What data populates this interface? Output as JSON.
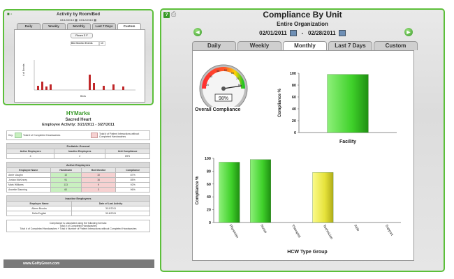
{
  "small_panel": {
    "title": "Activity by Room/Bed",
    "date_from": "03/12/2010",
    "date_to": "03/12/2010",
    "tabs": [
      "Daily",
      "Weekly",
      "Monthly",
      "Last 7 Days",
      "Custom"
    ],
    "active_tab": "Custom",
    "room_button": "Room 3 F",
    "bed_monitor_label": "Bed Monitor Events",
    "bed_monitor_value": "10",
    "y_label": "# of Events",
    "x_label": "Beds"
  },
  "report": {
    "brand_hy": "HY",
    "brand_marks": "Marks",
    "facility": "Sacred Heart",
    "activity_title": "Employee Activity: 3/21/2011 - 3/27/2011",
    "legend_key": "Key:",
    "legend_green": "Total # of Completed Handwashes",
    "legend_pink": "Total # of Patient Interactions without Completed Handwashes",
    "unit_name": "Pediatric General",
    "unit_headers": [
      "Active Employees",
      "Inactive Employees",
      "Unit Compliance"
    ],
    "unit_values": [
      "4",
      "2",
      "89%"
    ],
    "active_title": "Active Employees",
    "active_headers": [
      "Employee Name",
      "Handwash",
      "Bed Monitor",
      "Compliance"
    ],
    "active_rows": [
      [
        "Aerie Vaughn",
        "10",
        "10",
        "87%"
      ],
      [
        "Jordan McKinney",
        "91",
        "16",
        "85%"
      ],
      [
        "Mark Williams",
        "113",
        "9",
        "92%"
      ],
      [
        "Annette Stanning",
        "60",
        "3",
        "96%"
      ]
    ],
    "inactive_title": "Inactive Employees",
    "inactive_headers": [
      "Employee Name",
      "Date of Last Activity"
    ],
    "inactive_rows": [
      [
        "Aileen Brooks",
        "3/11/2011"
      ],
      [
        "Della English",
        "3/16/2011"
      ]
    ],
    "note_1": "Compliance is calculated using the following formula:",
    "note_2": "Total # of Completed Handwashes",
    "note_3": "Total # of Completed Handwashes + Total # Number of Patient Interactions without Completed Handwashes",
    "footer": "www.GoHyGreen.com"
  },
  "main_panel": {
    "title": "Compliance By Unit",
    "subtitle": "Entire Organization",
    "date_from": "02/01/2011",
    "date_sep": "-",
    "date_to": "02/28/2011",
    "prev_arrow": "◄",
    "next_arrow": "►",
    "tabs": [
      "Daily",
      "Weekly",
      "Monthly",
      "Last 7 Days",
      "Custom"
    ],
    "active_tab": "Monthly",
    "gauge_value": "98%",
    "gauge_label": "Overall Compliance"
  },
  "chart_data": [
    {
      "type": "bar",
      "title": "",
      "xlabel": "Facility",
      "ylabel": "Compliance %",
      "ylim": [
        0,
        100
      ],
      "yticks": [
        0,
        20,
        40,
        60,
        80,
        100
      ],
      "categories": [
        ""
      ],
      "values": [
        98
      ],
      "colors": [
        "#3fd12a"
      ],
      "grid": false
    },
    {
      "type": "bar",
      "title": "",
      "xlabel": "HCW Type Group",
      "ylabel": "Compliance %",
      "ylim": [
        0,
        100
      ],
      "yticks": [
        0,
        20,
        40,
        60,
        80,
        100
      ],
      "categories": [
        "Physician",
        "Nurse",
        "Therapist",
        "Technician",
        "Aide",
        "Support"
      ],
      "values": [
        94,
        98,
        0,
        78,
        0,
        0
      ],
      "colors": [
        "#3fd12a",
        "#3fd12a",
        "#3fd12a",
        "#e6e23a",
        "#3fd12a",
        "#3fd12a"
      ],
      "grid": false
    }
  ],
  "colors": {
    "brand_green": "#5cbf3a",
    "bar_green": "#3fd12a",
    "bar_yellow": "#e6e23a",
    "mini_bar_red": "#c0282a"
  }
}
